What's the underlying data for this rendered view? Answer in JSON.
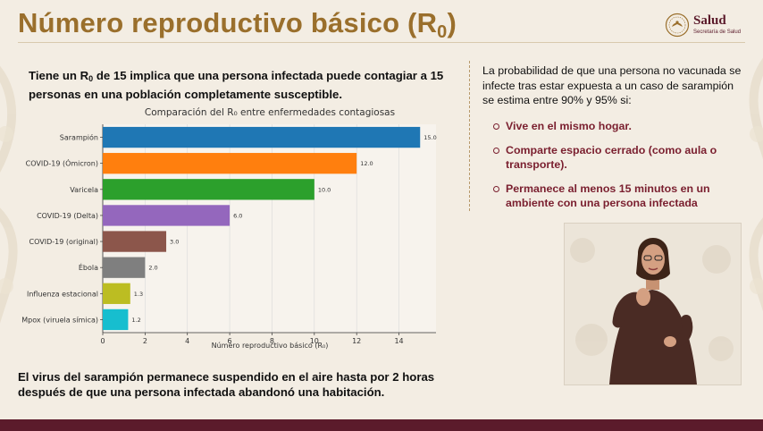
{
  "slide": {
    "title": "Número reproductivo básico (R",
    "title_subscript": "0",
    "title_suffix": ")",
    "logo": {
      "name": "Salud",
      "subtitle": "Secretaría de Salud"
    },
    "lead_parts": [
      "Tiene un R",
      "0",
      " de 15 implica que una persona infectada puede contagiar a 15 personas en una población completamente susceptible."
    ],
    "right_intro": "La probabilidad de que una persona no vacunada se infecte tras estar expuesta a un caso de sarampión se estima entre 90% y 95% si:",
    "bullets": [
      "Vive en el mismo hogar.",
      "Comparte espacio cerrado (como aula o transporte).",
      "Permanece al menos 15 minutos en un ambiente con una persona infectada"
    ],
    "footer_text": "El virus del sarampión permanece suspendido en el aire hasta por 2 horas después de que una persona infectada abandonó una habitación."
  },
  "colors": {
    "title": "#9a6f2c",
    "accent": "#7a1f2f",
    "bottom_bar": "#5b1b2b",
    "background": "#f3ede3"
  },
  "chart_data": {
    "type": "bar",
    "orientation": "horizontal",
    "title": "Comparación del R₀ entre enfermedades contagiosas",
    "xlabel": "Número reproductivo básico (R₀)",
    "ylabel": "",
    "categories": [
      "Sarampión",
      "COVID-19 (Ómicron)",
      "Varicela",
      "COVID-19 (Delta)",
      "COVID-19 (original)",
      "Ébola",
      "Influenza estacional",
      "Mpox (viruela símica)"
    ],
    "values": [
      15.0,
      12.0,
      10.0,
      6.0,
      3.0,
      2.0,
      1.3,
      1.2
    ],
    "value_labels": [
      "15.0",
      "12.0",
      "10.0",
      "6.0",
      "3.0",
      "2.0",
      "1.3",
      "1.2"
    ],
    "bar_colors": [
      "#1f77b4",
      "#ff7f0e",
      "#2ca02c",
      "#9467bd",
      "#8c564b",
      "#7f7f7f",
      "#bcbd22",
      "#17becf"
    ],
    "xlim": [
      0,
      15.75
    ],
    "xticks": [
      0,
      2,
      4,
      6,
      8,
      10,
      12,
      14
    ],
    "grid": "x",
    "legend": "none"
  },
  "icons": {
    "logo": "salud-eagle-icon",
    "interpreter": "sign-language-interpreter-figure"
  }
}
